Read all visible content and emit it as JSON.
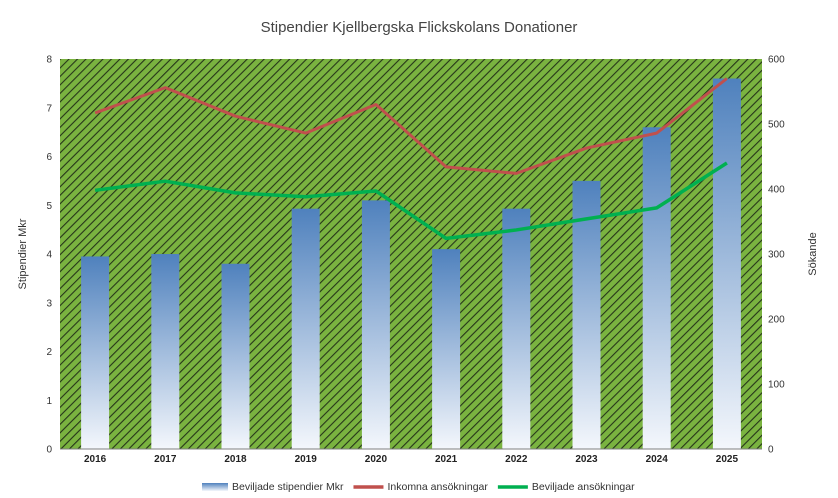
{
  "chart_data": {
    "type": "bar",
    "title": "Stipendier Kjellbergska Flickskolans Donationer",
    "categories": [
      "2016",
      "2017",
      "2018",
      "2019",
      "2020",
      "2021",
      "2022",
      "2023",
      "2024",
      "2025"
    ],
    "ylabel": "Stipendier Mkr",
    "y2label": "Sökande",
    "ylim": [
      0,
      8
    ],
    "y2lim": [
      0,
      600
    ],
    "yticks": [
      "0",
      "1",
      "2",
      "3",
      "4",
      "5",
      "6",
      "7",
      "8"
    ],
    "y2ticks": [
      "0",
      "100",
      "200",
      "300",
      "400",
      "500",
      "600"
    ],
    "series": [
      {
        "name": "Beviljade stipendier Mkr",
        "kind": "bar",
        "axis": "left",
        "color": "#4f81bd",
        "values": [
          3.95,
          4.0,
          3.8,
          4.93,
          5.1,
          4.1,
          4.93,
          5.5,
          6.6,
          7.6
        ]
      },
      {
        "name": "Inkomna ansökningar",
        "kind": "line",
        "axis": "right",
        "color": "#c0504d",
        "values": [
          517,
          556,
          512,
          486,
          530,
          434,
          424,
          463,
          486,
          570
        ]
      },
      {
        "name": "Beviljade ansökningar",
        "kind": "line",
        "axis": "right",
        "color": "#00b050",
        "values": [
          398,
          412,
          394,
          388,
          397,
          324,
          337,
          354,
          371,
          440
        ]
      }
    ],
    "plot_background": "#7ab340",
    "legend_position": "bottom"
  }
}
